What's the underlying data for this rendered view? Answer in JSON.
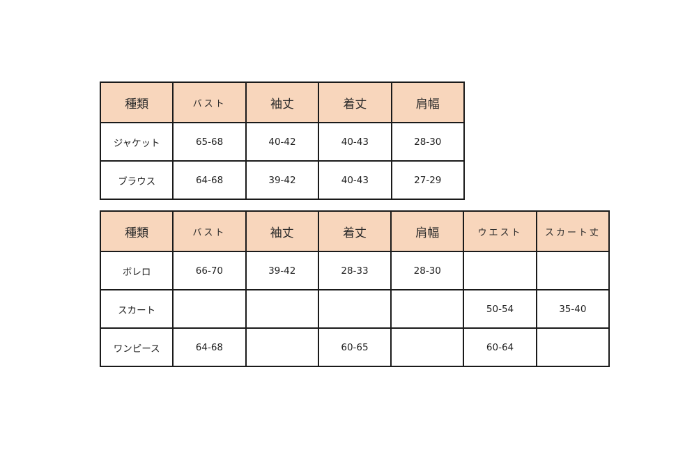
{
  "colors": {
    "header_bg": "#F8D6BC",
    "border": "#1A1A1A",
    "header_text": "#2A2A2A",
    "body_text": "#1F1F1F",
    "page_bg": "#FFFFFF"
  },
  "chart_data": [
    {
      "type": "table",
      "title": "",
      "headers": [
        "種類",
        "バスト",
        "袖丈",
        "着丈",
        "肩幅"
      ],
      "rows": [
        [
          "ジャケット",
          "65-68",
          "40-42",
          "40-43",
          "28-30"
        ],
        [
          "ブラウス",
          "64-68",
          "39-42",
          "40-43",
          "27-29"
        ]
      ]
    },
    {
      "type": "table",
      "title": "",
      "headers": [
        "種類",
        "バスト",
        "袖丈",
        "着丈",
        "肩幅",
        "ウエスト",
        "スカート丈"
      ],
      "rows": [
        [
          "ボレロ",
          "66-70",
          "39-42",
          "28-33",
          "28-30",
          "",
          ""
        ],
        [
          "スカート",
          "",
          "",
          "",
          "",
          "50-54",
          "35-40"
        ],
        [
          "ワンピース",
          "64-68",
          "",
          "60-65",
          "",
          "60-64",
          ""
        ]
      ]
    }
  ]
}
